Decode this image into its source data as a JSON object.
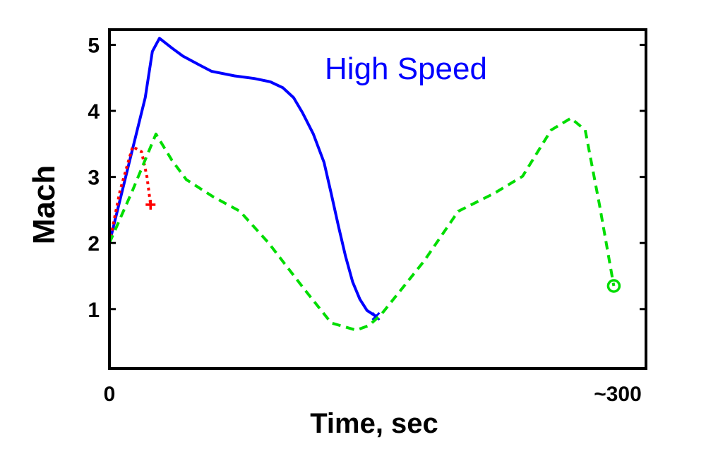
{
  "chart_data": {
    "type": "line",
    "title": "",
    "annotation": "High Speed",
    "annotation_color": "#0000ff",
    "xlabel": "Time, sec",
    "ylabel": "Mach",
    "xlim": [
      0,
      300
    ],
    "ylim": [
      0.1,
      5.23
    ],
    "xticks": [
      {
        "value": 0,
        "label": "0"
      },
      {
        "value": 300,
        "label": "~300"
      }
    ],
    "yticks": [
      1,
      2,
      3,
      4,
      5
    ],
    "grid": false,
    "series": [
      {
        "name": "blue-solid",
        "color": "#0000ff",
        "style": "solid",
        "end_marker": "x",
        "x": [
          0,
          10,
          20,
          24,
          28,
          35,
          41,
          50,
          57,
          70,
          81,
          90,
          97,
          103,
          108,
          114,
          120,
          124,
          128,
          132,
          136,
          140,
          144,
          149
        ],
        "y": [
          2.0,
          3.1,
          4.2,
          4.9,
          5.1,
          4.95,
          4.83,
          4.7,
          4.6,
          4.53,
          4.49,
          4.44,
          4.35,
          4.2,
          3.97,
          3.65,
          3.22,
          2.75,
          2.26,
          1.8,
          1.41,
          1.15,
          0.98,
          0.89
        ]
      },
      {
        "name": "red-dotted",
        "color": "#ff0000",
        "style": "dotted",
        "end_marker": "+",
        "x": [
          0,
          6,
          13,
          18,
          21,
          23
        ],
        "y": [
          2.0,
          2.8,
          3.46,
          3.38,
          3.0,
          2.58
        ]
      },
      {
        "name": "green-dashed",
        "color": "#00dd00",
        "style": "dashed",
        "end_marker": "o",
        "x": [
          0,
          13,
          26,
          35,
          43,
          58,
          73,
          89,
          109,
          124,
          138,
          145,
          152,
          176,
          195,
          215,
          231,
          247,
          258,
          266,
          274,
          282
        ],
        "y": [
          2.0,
          2.8,
          3.65,
          3.25,
          2.96,
          2.7,
          2.48,
          2.0,
          1.3,
          0.79,
          0.68,
          0.75,
          0.92,
          1.73,
          2.48,
          2.75,
          3.01,
          3.71,
          3.89,
          3.71,
          2.58,
          1.35
        ]
      }
    ]
  }
}
